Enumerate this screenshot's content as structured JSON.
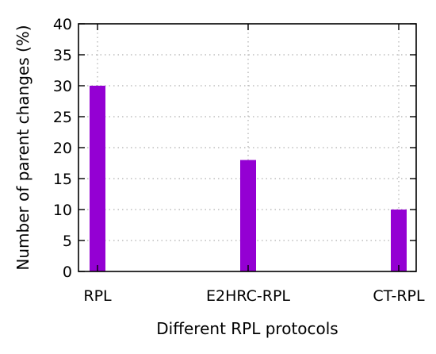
{
  "chart_data": {
    "type": "bar",
    "categories": [
      "RPL",
      "E2HRC-RPL",
      "CT-RPL"
    ],
    "values": [
      30,
      18,
      10
    ],
    "xlabel": "Different RPL protocols",
    "ylabel": "Number of parent changes (%)",
    "ylim": [
      0,
      40
    ],
    "yticks": [
      "0",
      "5",
      "10",
      "15",
      "20",
      "25",
      "30",
      "35",
      "40"
    ],
    "grid": true,
    "bar_color": "#9400d3"
  }
}
